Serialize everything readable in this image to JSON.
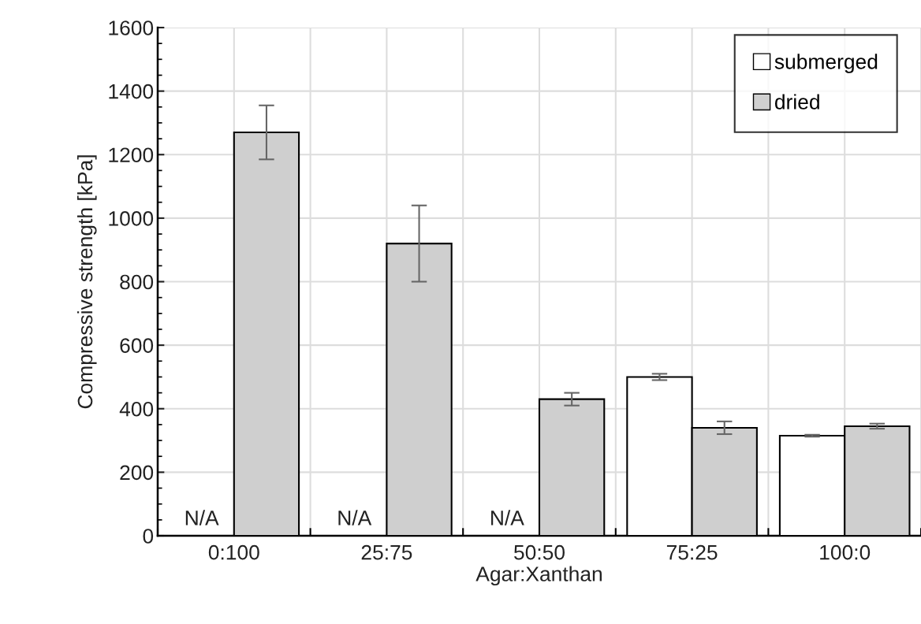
{
  "chart_data": {
    "type": "bar",
    "xlabel": "Agar:Xanthan",
    "ylabel": "Compressive strength [kPa]",
    "categories": [
      "0:100",
      "25:75",
      "50:50",
      "75:25",
      "100:0"
    ],
    "series": [
      {
        "name": "submerged",
        "color": "#ffffff",
        "values": [
          null,
          null,
          null,
          500,
          315
        ],
        "errors": [
          null,
          null,
          null,
          10,
          3
        ]
      },
      {
        "name": "dried",
        "color": "#cfcfcf",
        "values": [
          1270,
          920,
          430,
          340,
          345
        ],
        "errors": [
          85,
          120,
          20,
          20,
          8
        ]
      }
    ],
    "ylim": [
      0,
      1600
    ],
    "yticks": [
      0,
      200,
      400,
      600,
      800,
      1000,
      1200,
      1400,
      1600
    ],
    "annotations": [
      {
        "text": "N/A",
        "x": "0:100",
        "y": 0
      },
      {
        "text": "N/A",
        "x": "25:75",
        "y": 0
      },
      {
        "text": "N/A",
        "x": "50:50",
        "y": 0
      }
    ],
    "grid": true,
    "legend": "top right"
  }
}
